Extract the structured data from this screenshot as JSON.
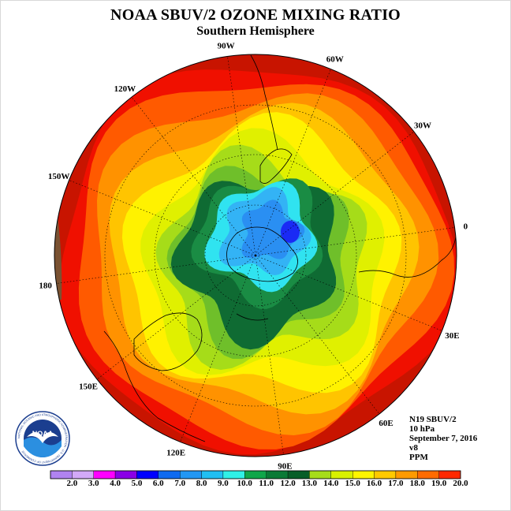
{
  "title": "NOAA SBUV/2 OZONE MIXING RATIO",
  "subtitle": "Southern Hemisphere",
  "longitude_labels": [
    "0",
    "30E",
    "60E",
    "90E",
    "120E",
    "150E",
    "180",
    "150W",
    "120W",
    "90W",
    "60W",
    "30W"
  ],
  "info": {
    "satellite": "N19 SBUV/2",
    "level": "10 hPa",
    "date": "September 7, 2016",
    "version": "v8",
    "units": "PPM"
  },
  "colorbar": {
    "ticks": [
      "2.0",
      "3.0",
      "4.0",
      "5.0",
      "6.0",
      "7.0",
      "8.0",
      "9.0",
      "10.0",
      "11.0",
      "12.0",
      "13.0",
      "14.0",
      "15.0",
      "16.0",
      "17.0",
      "18.0",
      "19.0",
      "20.0"
    ],
    "colors": [
      "#b083f0",
      "#d3a9f8",
      "#ff00ff",
      "#8a00e6",
      "#0000ff",
      "#0f6af0",
      "#2297f3",
      "#20bff2",
      "#30f0e6",
      "#10a64a",
      "#0a7a36",
      "#075e28",
      "#a6dc19",
      "#d8f000",
      "#fff500",
      "#ffc900",
      "#ff9a00",
      "#ff6b00",
      "#ff2800",
      "#f00000",
      "#7a5232"
    ]
  },
  "logo": {
    "name": "NOAA",
    "ring_text": "NATIONAL OCEANIC AND ATMOSPHERIC ADMINISTRATION · U.S. DEPARTMENT OF COMMERCE"
  },
  "map": {
    "projection": "polar stereographic",
    "hemisphere": "south",
    "contour_levels_ppm": [
      7.0,
      8.0,
      9.0,
      10.0,
      11.0,
      12.0,
      13.0,
      14.0,
      15.0,
      16.0,
      17.0,
      18.0,
      19.0,
      20.0
    ],
    "contour_colors": [
      "#1a2af5",
      "#2a8ff2",
      "#33b3f5",
      "#30e3f0",
      "#1a8c44",
      "#0f6b33",
      "#6fbf2a",
      "#a6dc19",
      "#e0f000",
      "#fff200",
      "#ffc400",
      "#ff9200",
      "#ff5a00",
      "#f01000"
    ],
    "background_color": "#ffffff"
  }
}
